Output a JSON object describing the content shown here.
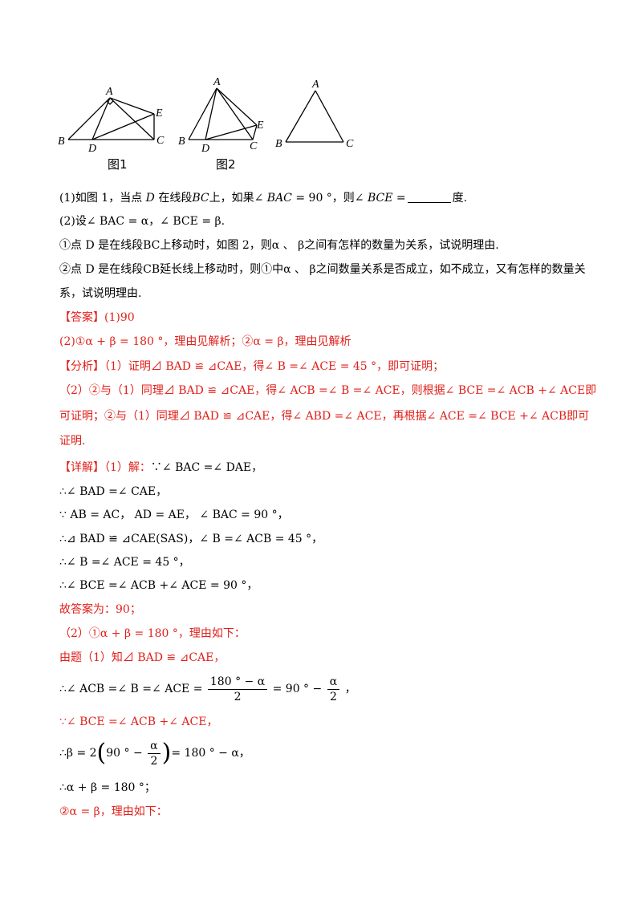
{
  "figures": {
    "fig1": {
      "caption": "图1",
      "labels": {
        "A": "A",
        "B": "B",
        "C": "C",
        "D": "D",
        "E": "E"
      }
    },
    "fig2": {
      "caption": "图2",
      "labels": {
        "A": "A",
        "B": "B",
        "C": "C",
        "D": "D",
        "E": "E"
      }
    },
    "fig3": {
      "labels": {
        "A": "A",
        "B": "B",
        "C": "C"
      }
    }
  },
  "question": {
    "q1": {
      "prefix": "(1)如图 1，当点 ",
      "D": "D",
      "mid1": " 在线段",
      "BC": "BC",
      "mid2": "上，如果∠ ",
      "BAC": "BAC",
      "val": " = 90 °，则∠ ",
      "BCE": "BCE",
      "eq": " =",
      "unit": "度."
    },
    "q2": {
      "text": "(2)设∠ BAC = α，∠ BCE = β."
    },
    "q2a": {
      "text": "①点 D 是在线段BC上移动时，如图 2，则α 、 β之间有怎样的数量为关系，试说明理由."
    },
    "q2b_l1": {
      "text": "②点 D 是在线段CB延长线上移动时，则①中α 、 β之间数量关系是否成立，如不成立，又有怎样的数量关"
    },
    "q2b_l2": {
      "text": "系，试说明理由."
    }
  },
  "answer": {
    "label": "【答案】(1)90",
    "l2": "(2)①α + β = 180 °，理由见解析；②α = β，理由见解析"
  },
  "analysis": {
    "l1": "【分析】（1）证明⊿ BAD ≌ ⊿CAE，得∠ B =∠ ACE = 45 °，即可证明；",
    "l2": "（2）②与（1）同理⊿ BAD ≌ ⊿CAE，得∠ ACB =∠ B =∠ ACE，则根据∠ BCE =∠ ACB +∠ ACE即",
    "l3": "可证明；②与（1）同理⊿ BAD ≌ ⊿CAE，得∠ ABD =∠ ACE，再根据∠ ACE =∠ BCE +∠ ACB即可",
    "l4": "证明."
  },
  "detail": {
    "l1_tag": "【详解】（1）解：",
    "l1_body": "∵∠ BAC =∠ DAE，",
    "l2": "∴∠ BAD =∠ CAE，",
    "l3": "∵ AB = AC， AD = AE， ∠ BAC = 90 °，",
    "l4": "∴⊿ BAD ≌ ⊿CAE(SAS)，∠ B =∠ ACB = 45 °，",
    "l5": "∴∠ B =∠ ACE = 45 °，",
    "l6": "∴∠ BCE =∠ ACB +∠ ACE = 90 °，",
    "l7": "故答案为：90；",
    "l8": "（2）①α + β = 180 °，理由如下：",
    "l9": "由题（1）知⊿ BAD ≌ ⊿CAE，",
    "l10_pre": "∴∠ ACB =∠ B =∠ ACE =",
    "l10_num": "180 ° − α",
    "l10_den": "2",
    "l10_mid": "= 90 ° −",
    "l10_num2": "α",
    "l10_den2": "2",
    "l10_end": "，",
    "l11": "∵∠ BCE =∠ ACB +∠ ACE，",
    "l12_pre": "∴β = 2",
    "l12_in": "90 ° −",
    "l12_num": "α",
    "l12_den": "2",
    "l12_end": "= 180 ° − α，",
    "l13": "∴α + β = 180 °；",
    "l14": "②α = β，理由如下："
  }
}
